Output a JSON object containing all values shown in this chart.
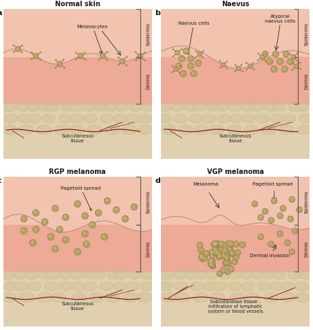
{
  "panel_titles": [
    "Normal skin",
    "Naevus",
    "RGP melanoma",
    "VGP melanoma"
  ],
  "panel_labels": [
    "a",
    "b",
    "c",
    "d"
  ],
  "skin_color": "#f2c4b0",
  "dermis_color": "#edaa96",
  "subcut_color": "#e0d0b0",
  "subcut_bump_color": "#d8c8a0",
  "subcut_bump_edge": "#c4b080",
  "cell_face": "#b8a468",
  "cell_edge": "#8c7840",
  "cell_light": "#d4bc84",
  "skin_line_color": "#c89080",
  "vessel_color": "#8b1a1a",
  "text_color": "#1a1a1a",
  "bracket_color": "#555555",
  "arrow_color": "#333333",
  "bg_color": "#ffffff",
  "epid_label": "Epidermis",
  "derm_label": "Dermis",
  "subcut_labels": [
    "Subcutaneous\ntissue",
    "Subcutaneous\ntissue",
    "Subcutaneous\ntissue",
    "Subcutaneous tissue -\ninfiltration of lymphatic\nsystem or blood vessels"
  ]
}
